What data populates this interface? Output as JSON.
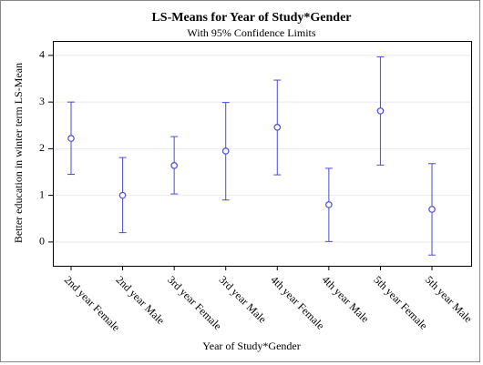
{
  "chart_data": {
    "type": "errorbar",
    "title": "LS-Means for Year of Study*Gender",
    "subtitle": "With 95% Confidence Limits",
    "x_label": "Year of Study*Gender",
    "y_label": "Better education in winter term LS-Mean",
    "categories": [
      "2nd year Female",
      "2nd year Male",
      "3rd year Female",
      "3rd year Male",
      "4th year Female",
      "4th year Male",
      "5th year Female",
      "5th year Male"
    ],
    "series": [
      {
        "color": "#4a4ad8",
        "values": [
          2.22,
          1.0,
          1.64,
          1.95,
          2.46,
          0.8,
          2.81,
          0.7
        ],
        "lower": [
          1.45,
          0.2,
          1.03,
          0.9,
          1.44,
          0.01,
          1.65,
          -0.28
        ],
        "upper": [
          3.0,
          1.81,
          2.26,
          2.99,
          3.47,
          1.58,
          3.97,
          1.68
        ]
      }
    ],
    "ylim": [
      -0.51,
      4.31
    ],
    "yticks": [
      0,
      1,
      2,
      3,
      4
    ],
    "grid": true
  }
}
